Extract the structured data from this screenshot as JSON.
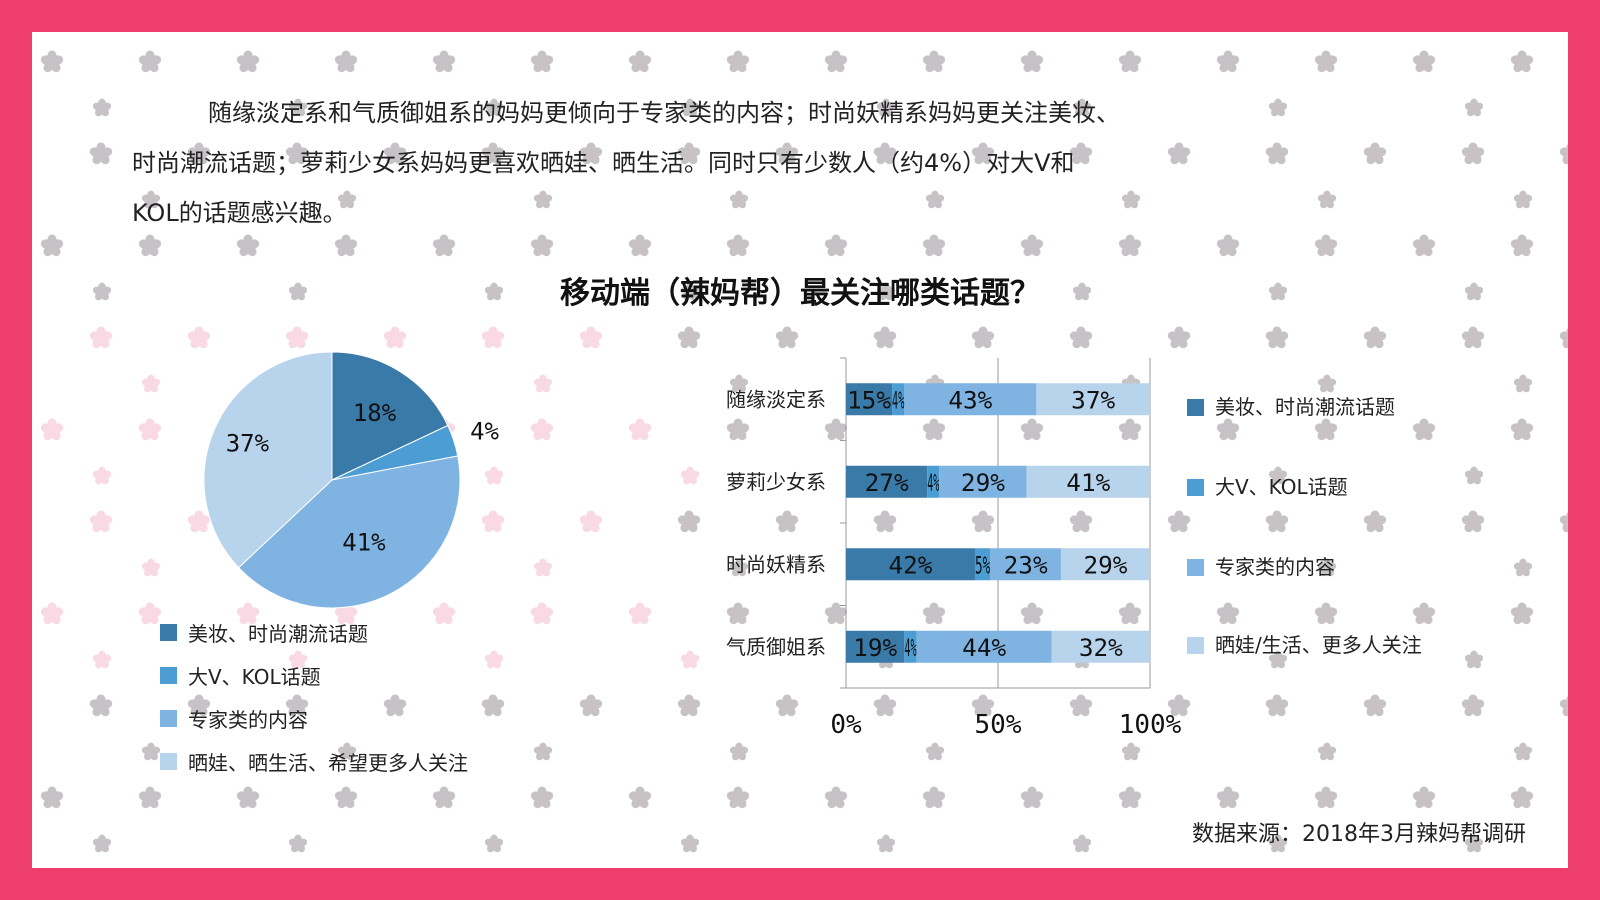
{
  "intro_text": {
    "line1": "随缘淡定系和气质御姐系的妈妈更倾向于专家类的内容；时尚妖精系妈妈更关注美妆、",
    "line2": "时尚潮流话题；萝莉少女系妈妈更喜欢晒娃、晒生活。同时只有少数人（约4%）对大V和",
    "line3": "KOL的话题感兴趣。"
  },
  "chart_title": "移动端（辣妈帮）最关注哪类话题？",
  "source": "数据来源：2018年3月辣妈帮调研",
  "colors": {
    "frame": "#ee3f6c",
    "s1": "#3a7aa8",
    "s2": "#4c9dd3",
    "s3": "#7fb3e1",
    "s4": "#b8d3ec",
    "flower_gray": "#c7c2c6",
    "flower_pink": "#f9d9e3"
  },
  "chart_data": [
    {
      "type": "pie",
      "title": "",
      "categories": [
        "美妆、时尚潮流话题",
        "大V、KOL话题",
        "专家类的内容",
        "晒娃、晒生活、希望更多人关注"
      ],
      "values": [
        18,
        4,
        41,
        37
      ],
      "labels": [
        "18%",
        "4%",
        "41%",
        "37%"
      ],
      "legend_position": "bottom"
    },
    {
      "type": "bar",
      "orientation": "horizontal",
      "stacked": "percent",
      "categories": [
        "随缘淡定系",
        "萝莉少女系",
        "时尚妖精系",
        "气质御姐系"
      ],
      "series": [
        {
          "name": "美妆、时尚潮流话题",
          "values": [
            15,
            27,
            42,
            19
          ]
        },
        {
          "name": "大V、KOL话题",
          "values": [
            4,
            4,
            5,
            4
          ]
        },
        {
          "name": "专家类的内容",
          "values": [
            43,
            29,
            23,
            44
          ]
        },
        {
          "name": "晒娃/生活、更多人关注",
          "values": [
            37,
            41,
            29,
            32
          ]
        }
      ],
      "xticks": [
        "0%",
        "50%",
        "100%"
      ],
      "xlim": [
        0,
        100
      ],
      "legend_position": "right",
      "grid": true
    }
  ]
}
